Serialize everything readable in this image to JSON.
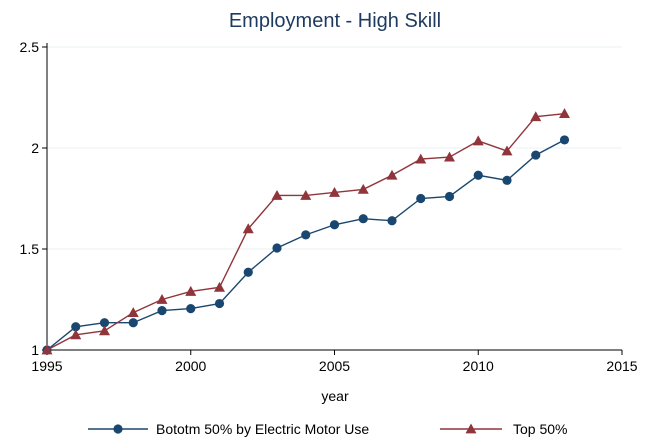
{
  "chart_data": {
    "type": "line",
    "title": "Employment - High Skill",
    "xlabel": "year",
    "ylabel": "",
    "xlim": [
      1995,
      2015
    ],
    "ylim": [
      1,
      2.5
    ],
    "x_ticks": [
      1995,
      2000,
      2005,
      2010,
      2015
    ],
    "y_ticks": [
      1,
      1.5,
      2,
      2.5
    ],
    "grid": "horizontal",
    "legend_position": "bottom",
    "series": [
      {
        "name": "Bototm 50% by Electric Motor Use",
        "color": "#1a476f",
        "marker": "circle",
        "x": [
          1995,
          1996,
          1997,
          1998,
          1999,
          2000,
          2001,
          2002,
          2003,
          2004,
          2005,
          2006,
          2007,
          2008,
          2009,
          2010,
          2011,
          2012,
          2013
        ],
        "values": [
          1.0,
          1.115,
          1.135,
          1.135,
          1.195,
          1.205,
          1.23,
          1.385,
          1.505,
          1.57,
          1.62,
          1.65,
          1.64,
          1.75,
          1.76,
          1.865,
          1.84,
          1.965,
          2.04
        ]
      },
      {
        "name": "Top 50%",
        "color": "#90353b",
        "marker": "triangle",
        "x": [
          1995,
          1996,
          1997,
          1998,
          1999,
          2000,
          2001,
          2002,
          2003,
          2004,
          2005,
          2006,
          2007,
          2008,
          2009,
          2010,
          2011,
          2012,
          2013
        ],
        "values": [
          1.0,
          1.075,
          1.095,
          1.185,
          1.25,
          1.29,
          1.31,
          1.6,
          1.765,
          1.765,
          1.78,
          1.795,
          1.865,
          1.945,
          1.955,
          2.035,
          1.985,
          2.155,
          2.17
        ]
      }
    ]
  }
}
